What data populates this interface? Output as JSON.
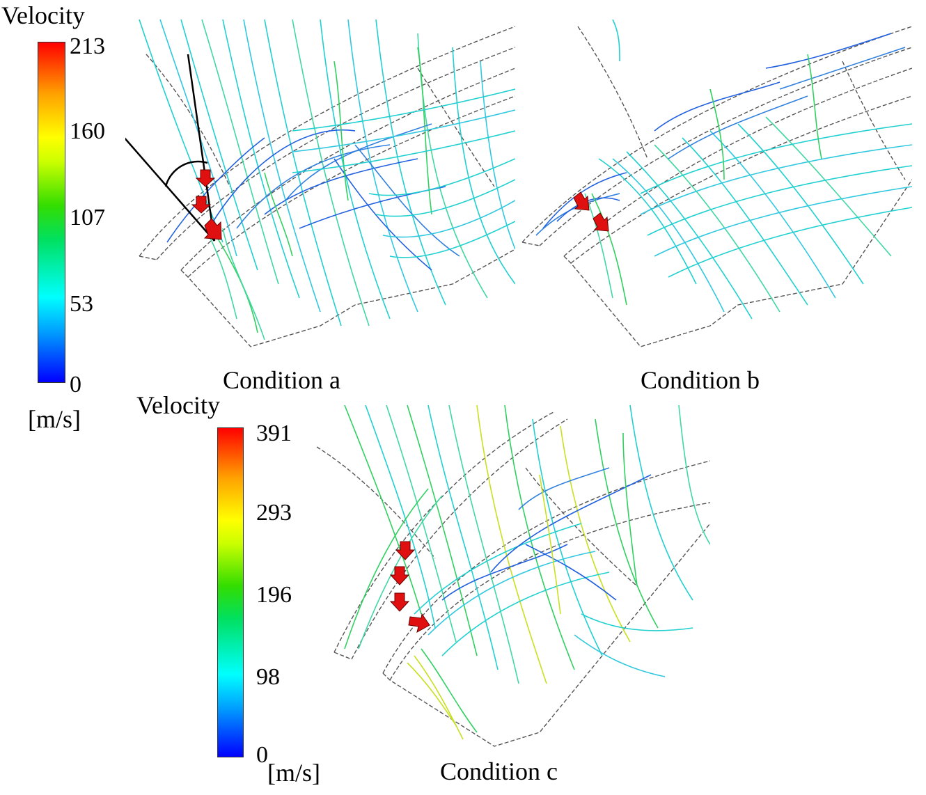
{
  "legend_a": {
    "title": "Velocity",
    "unit": "[m/s]",
    "ticks": [
      "213",
      "160",
      "107",
      "53",
      "0"
    ]
  },
  "legend_c": {
    "title": "Velocity",
    "unit": "[m/s]",
    "ticks": [
      "391",
      "293",
      "196",
      "98",
      "0"
    ]
  },
  "captions": {
    "a": "Condition a",
    "b": "Condition b",
    "c": "Condition c"
  },
  "colors": {
    "arrow": "#e01010",
    "outline": "#555555",
    "blue": "#2060e0",
    "cyan": "#20d0d0",
    "green": "#30d060",
    "yellow": "#c8e020"
  }
}
